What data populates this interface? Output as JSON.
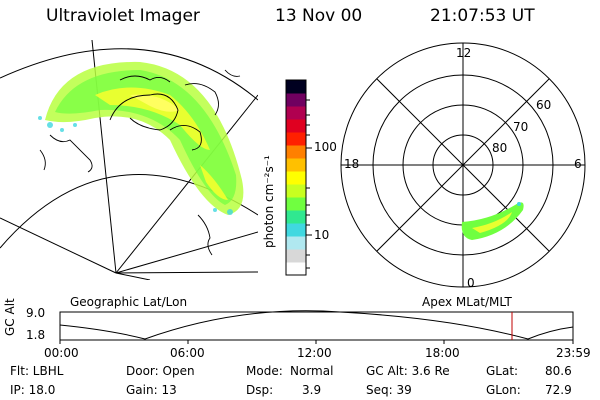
{
  "header": {
    "instrument": "Ultraviolet Imager",
    "date": "13 Nov 00",
    "time": "21:07:53 UT"
  },
  "colorbar": {
    "unit_label": "photon cm⁻²s⁻¹",
    "ticks": [
      "100",
      "10"
    ],
    "colors": [
      "#ffffff",
      "#d8d8d8",
      "#b0e8f0",
      "#40d8e0",
      "#30e890",
      "#70ff40",
      "#c8ff20",
      "#ffff00",
      "#ffc000",
      "#ff8000",
      "#ff2000",
      "#e00020",
      "#b00050",
      "#700060",
      "#000020"
    ]
  },
  "geo_panel": {
    "label": "Geographic Lat/Lon"
  },
  "polar_panel": {
    "label": "Apex MLat/MLT",
    "mlt_labels": {
      "top": "12",
      "left": "18",
      "right": "6",
      "bottom": "0"
    },
    "lat_labels": [
      "60",
      "70",
      "80"
    ]
  },
  "altitude_plot": {
    "ylabel": "GC Alt",
    "ymax": "9.0",
    "ymin": "1.8",
    "time_ticks": [
      "00:00",
      "06:00",
      "12:00",
      "18:00",
      "23:59"
    ],
    "marker_color": "#c00000"
  },
  "info": {
    "flt": "Flt: LBHL",
    "door": "Door: Open",
    "mode_label": "Mode:",
    "mode": "Normal",
    "gcalt": "GC Alt: 3.6 Re",
    "glat_label": "GLat:",
    "glat": "80.6",
    "ip": "IP: 18.0",
    "gain": "Gain: 13",
    "dsp_label": "Dsp:",
    "dsp": "3.9",
    "seq": "Seq: 39",
    "glon_label": "GLon:",
    "glon": "72.9"
  }
}
